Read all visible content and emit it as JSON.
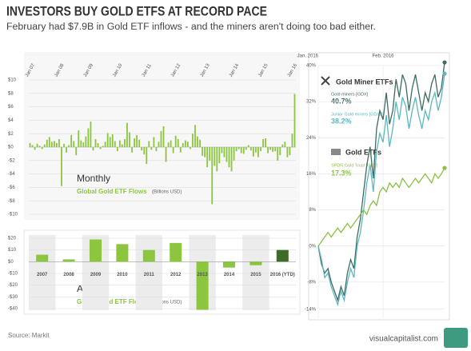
{
  "header": {
    "title": "INVESTORS BUY GOLD ETFS AT RECORD PACE",
    "subtitle": "February had $7.9B in Gold ETF inflows - and the miners aren't doing too bad either."
  },
  "footer": {
    "source": "Source: Markit",
    "brand": "visualcapitalist.com"
  },
  "chart_data": [
    {
      "type": "bar",
      "label": "Monthly",
      "subtitle": "Global Gold ETF Flows",
      "unit": "(Billions USD)",
      "color": "#8cc63f",
      "grid": true,
      "ylim": [
        -10,
        10
      ],
      "yticks": [
        {
          "value": 10,
          "label": "$10"
        },
        {
          "value": 8,
          "label": "$8"
        },
        {
          "value": 6,
          "label": "$6"
        },
        {
          "value": 4,
          "label": "$4"
        },
        {
          "value": 2,
          "label": "$2"
        },
        {
          "value": 0,
          "label": "$0"
        },
        {
          "value": -2,
          "label": "-$2"
        },
        {
          "value": -4,
          "label": "-$4"
        },
        {
          "value": -6,
          "label": "-$6"
        },
        {
          "value": -8,
          "label": "-$8"
        },
        {
          "value": -10,
          "label": "-$10"
        }
      ],
      "categories": [
        "Jan 07",
        null,
        null,
        null,
        null,
        null,
        null,
        null,
        null,
        null,
        null,
        null,
        "Jan 08",
        null,
        null,
        null,
        null,
        null,
        null,
        null,
        null,
        null,
        null,
        null,
        "Jan 09",
        null,
        null,
        null,
        null,
        null,
        null,
        null,
        null,
        null,
        null,
        null,
        "Jan 10",
        null,
        null,
        null,
        null,
        null,
        null,
        null,
        null,
        null,
        null,
        null,
        "Jan 11",
        null,
        null,
        null,
        null,
        null,
        null,
        null,
        null,
        null,
        null,
        null,
        "Jan 12",
        null,
        null,
        null,
        null,
        null,
        null,
        null,
        null,
        null,
        null,
        null,
        "Jan 13",
        null,
        null,
        null,
        null,
        null,
        null,
        null,
        null,
        null,
        null,
        null,
        "Jan 14",
        null,
        null,
        null,
        null,
        null,
        null,
        null,
        null,
        null,
        null,
        null,
        "Jan 15",
        null,
        null,
        null,
        null,
        null,
        null,
        null,
        null,
        null,
        null,
        null,
        "Jan 16",
        null
      ],
      "values": [
        0.6,
        0.3,
        -0.4,
        0.5,
        0.2,
        -0.3,
        0.4,
        1.1,
        1.5,
        0.8,
        0.9,
        0.6,
        1.2,
        -5.8,
        0.5,
        -0.8,
        0.3,
        1.8,
        0.9,
        -1.2,
        2.5,
        1.0,
        0.7,
        1.6,
        2.8,
        3.8,
        -0.5,
        1.2,
        0.6,
        -0.3,
        0.2,
        0.8,
        2.1,
        1.5,
        1.9,
        0.9,
        -0.6,
        1.0,
        0.4,
        1.2,
        3.6,
        2.2,
        -0.8,
        1.3,
        1.8,
        1.1,
        -0.5,
        -1.1,
        -2.5,
        0.9,
        -0.4,
        1.5,
        -0.6,
        0.8,
        2.4,
        3.1,
        -2.2,
        0.7,
        1.0,
        -0.9,
        1.7,
        1.2,
        -0.8,
        0.6,
        1.0,
        0.8,
        -0.3,
        2.0,
        3.3,
        1.6,
        1.1,
        -1.3,
        -1.5,
        -3.0,
        -2.0,
        -8.5,
        -2.8,
        -3.6,
        -2.4,
        -0.9,
        -1.5,
        -2.2,
        -3.0,
        -3.6,
        -2.0,
        -0.6,
        -0.3,
        -0.9,
        -1.0,
        -0.4,
        0.3,
        -0.5,
        -1.4,
        -0.8,
        -1.5,
        -0.6,
        1.2,
        1.3,
        -0.9,
        -0.4,
        -0.7,
        -0.6,
        -2.0,
        -1.2,
        0.4,
        0.8,
        -1.5,
        -1.2,
        2.0,
        7.9
      ]
    },
    {
      "type": "bar",
      "label": "Annual",
      "subtitle": "Global Gold ETF Flows",
      "unit": "(Billions USD)",
      "color": "#8cc63f",
      "highlight_color": "#3f6b2a",
      "grid": true,
      "ylim": [
        -40,
        20
      ],
      "yticks": [
        {
          "value": 20,
          "label": "$20"
        },
        {
          "value": 10,
          "label": "$10"
        },
        {
          "value": 0,
          "label": "$0"
        },
        {
          "value": -10,
          "label": "-$10"
        },
        {
          "value": -20,
          "label": "-$20"
        },
        {
          "value": -30,
          "label": "-$30"
        },
        {
          "value": -40,
          "label": "-$40"
        }
      ],
      "categories": [
        "2007",
        "2008",
        "2009",
        "2010",
        "2011",
        "2012",
        "2013",
        "2014",
        "2015",
        "2016 (YTD)"
      ],
      "values": [
        6,
        2,
        19,
        15,
        10,
        16,
        -41,
        -5,
        -3,
        10
      ]
    },
    {
      "type": "line",
      "grid": true,
      "groups": [
        "Gold Miner ETFs",
        "Gold ETFs"
      ],
      "ylim": [
        -16,
        40
      ],
      "yticks": [
        {
          "value": 40,
          "label": "40%"
        },
        {
          "value": 32,
          "label": "32%"
        },
        {
          "value": 24,
          "label": "24%"
        },
        {
          "value": 16,
          "label": "16%"
        },
        {
          "value": 8,
          "label": "8%"
        },
        {
          "value": 0,
          "label": "0%"
        },
        {
          "value": -8,
          "label": "-8%"
        },
        {
          "value": -14,
          "label": "-14%"
        }
      ],
      "categories": [
        "Jan. 2016",
        null,
        null,
        null,
        null,
        null,
        null,
        null,
        null,
        null,
        null,
        null,
        null,
        null,
        null,
        null,
        null,
        null,
        null,
        null,
        "Feb. 2016",
        null,
        null,
        null,
        null,
        null,
        null,
        null,
        null,
        null,
        null,
        null,
        null,
        null,
        null,
        null,
        null,
        null,
        null,
        null
      ],
      "series": [
        {
          "name": "Gold miners [GDX]",
          "color": "#3d6b62",
          "values": [
            0,
            -4,
            -6,
            -5,
            -8,
            -10,
            -12,
            -9,
            -11,
            -6,
            -3,
            -5,
            2,
            6,
            12,
            18,
            22,
            15,
            26,
            30,
            28,
            34,
            27,
            30,
            37,
            33,
            38,
            36,
            30,
            35,
            38,
            34,
            30,
            34,
            32,
            36,
            38,
            33,
            35,
            40.7
          ],
          "value_labels": [
            null,
            null,
            null,
            null,
            null,
            null,
            null,
            null,
            null,
            null,
            null,
            null,
            null,
            null,
            null,
            null,
            null,
            null,
            null,
            null,
            null,
            null,
            null,
            null,
            null,
            null,
            null,
            null,
            null,
            null,
            null,
            null,
            null,
            null,
            null,
            null,
            null,
            null,
            null,
            "40.7%"
          ]
        },
        {
          "name": "Junior Gold miners [GDXJ]",
          "color": "#5bb8c0",
          "values": [
            0,
            -3,
            -7,
            -6,
            -9,
            -11,
            -13,
            -10,
            -12,
            -8,
            -5,
            -7,
            0,
            3,
            8,
            14,
            18,
            12,
            21,
            25,
            23,
            29,
            22,
            26,
            32,
            28,
            33,
            31,
            26,
            30,
            33,
            29,
            26,
            30,
            28,
            32,
            34,
            30,
            33,
            38.2
          ],
          "value_labels": [
            null,
            null,
            null,
            null,
            null,
            null,
            null,
            null,
            null,
            null,
            null,
            null,
            null,
            null,
            null,
            null,
            null,
            null,
            null,
            null,
            null,
            null,
            null,
            null,
            null,
            null,
            null,
            null,
            null,
            null,
            null,
            null,
            null,
            null,
            null,
            null,
            null,
            null,
            null,
            "38.2%"
          ]
        },
        {
          "name": "SPDR Gold Trust [GLD]",
          "color": "#8bbf45",
          "values": [
            0,
            1,
            2,
            3,
            2,
            3,
            4,
            3,
            4,
            5,
            4,
            5,
            6,
            7,
            8,
            7,
            9,
            10,
            9,
            12,
            13,
            12,
            14,
            13,
            14,
            13,
            15,
            14,
            13,
            14,
            15,
            14,
            15,
            16,
            15,
            14,
            16,
            15,
            16,
            17.3
          ],
          "value_labels": [
            null,
            null,
            null,
            null,
            null,
            null,
            null,
            null,
            null,
            null,
            null,
            null,
            null,
            null,
            null,
            null,
            null,
            null,
            null,
            null,
            null,
            null,
            null,
            null,
            null,
            null,
            null,
            null,
            null,
            null,
            null,
            null,
            null,
            null,
            null,
            null,
            null,
            null,
            null,
            "17.3%"
          ]
        }
      ]
    }
  ]
}
